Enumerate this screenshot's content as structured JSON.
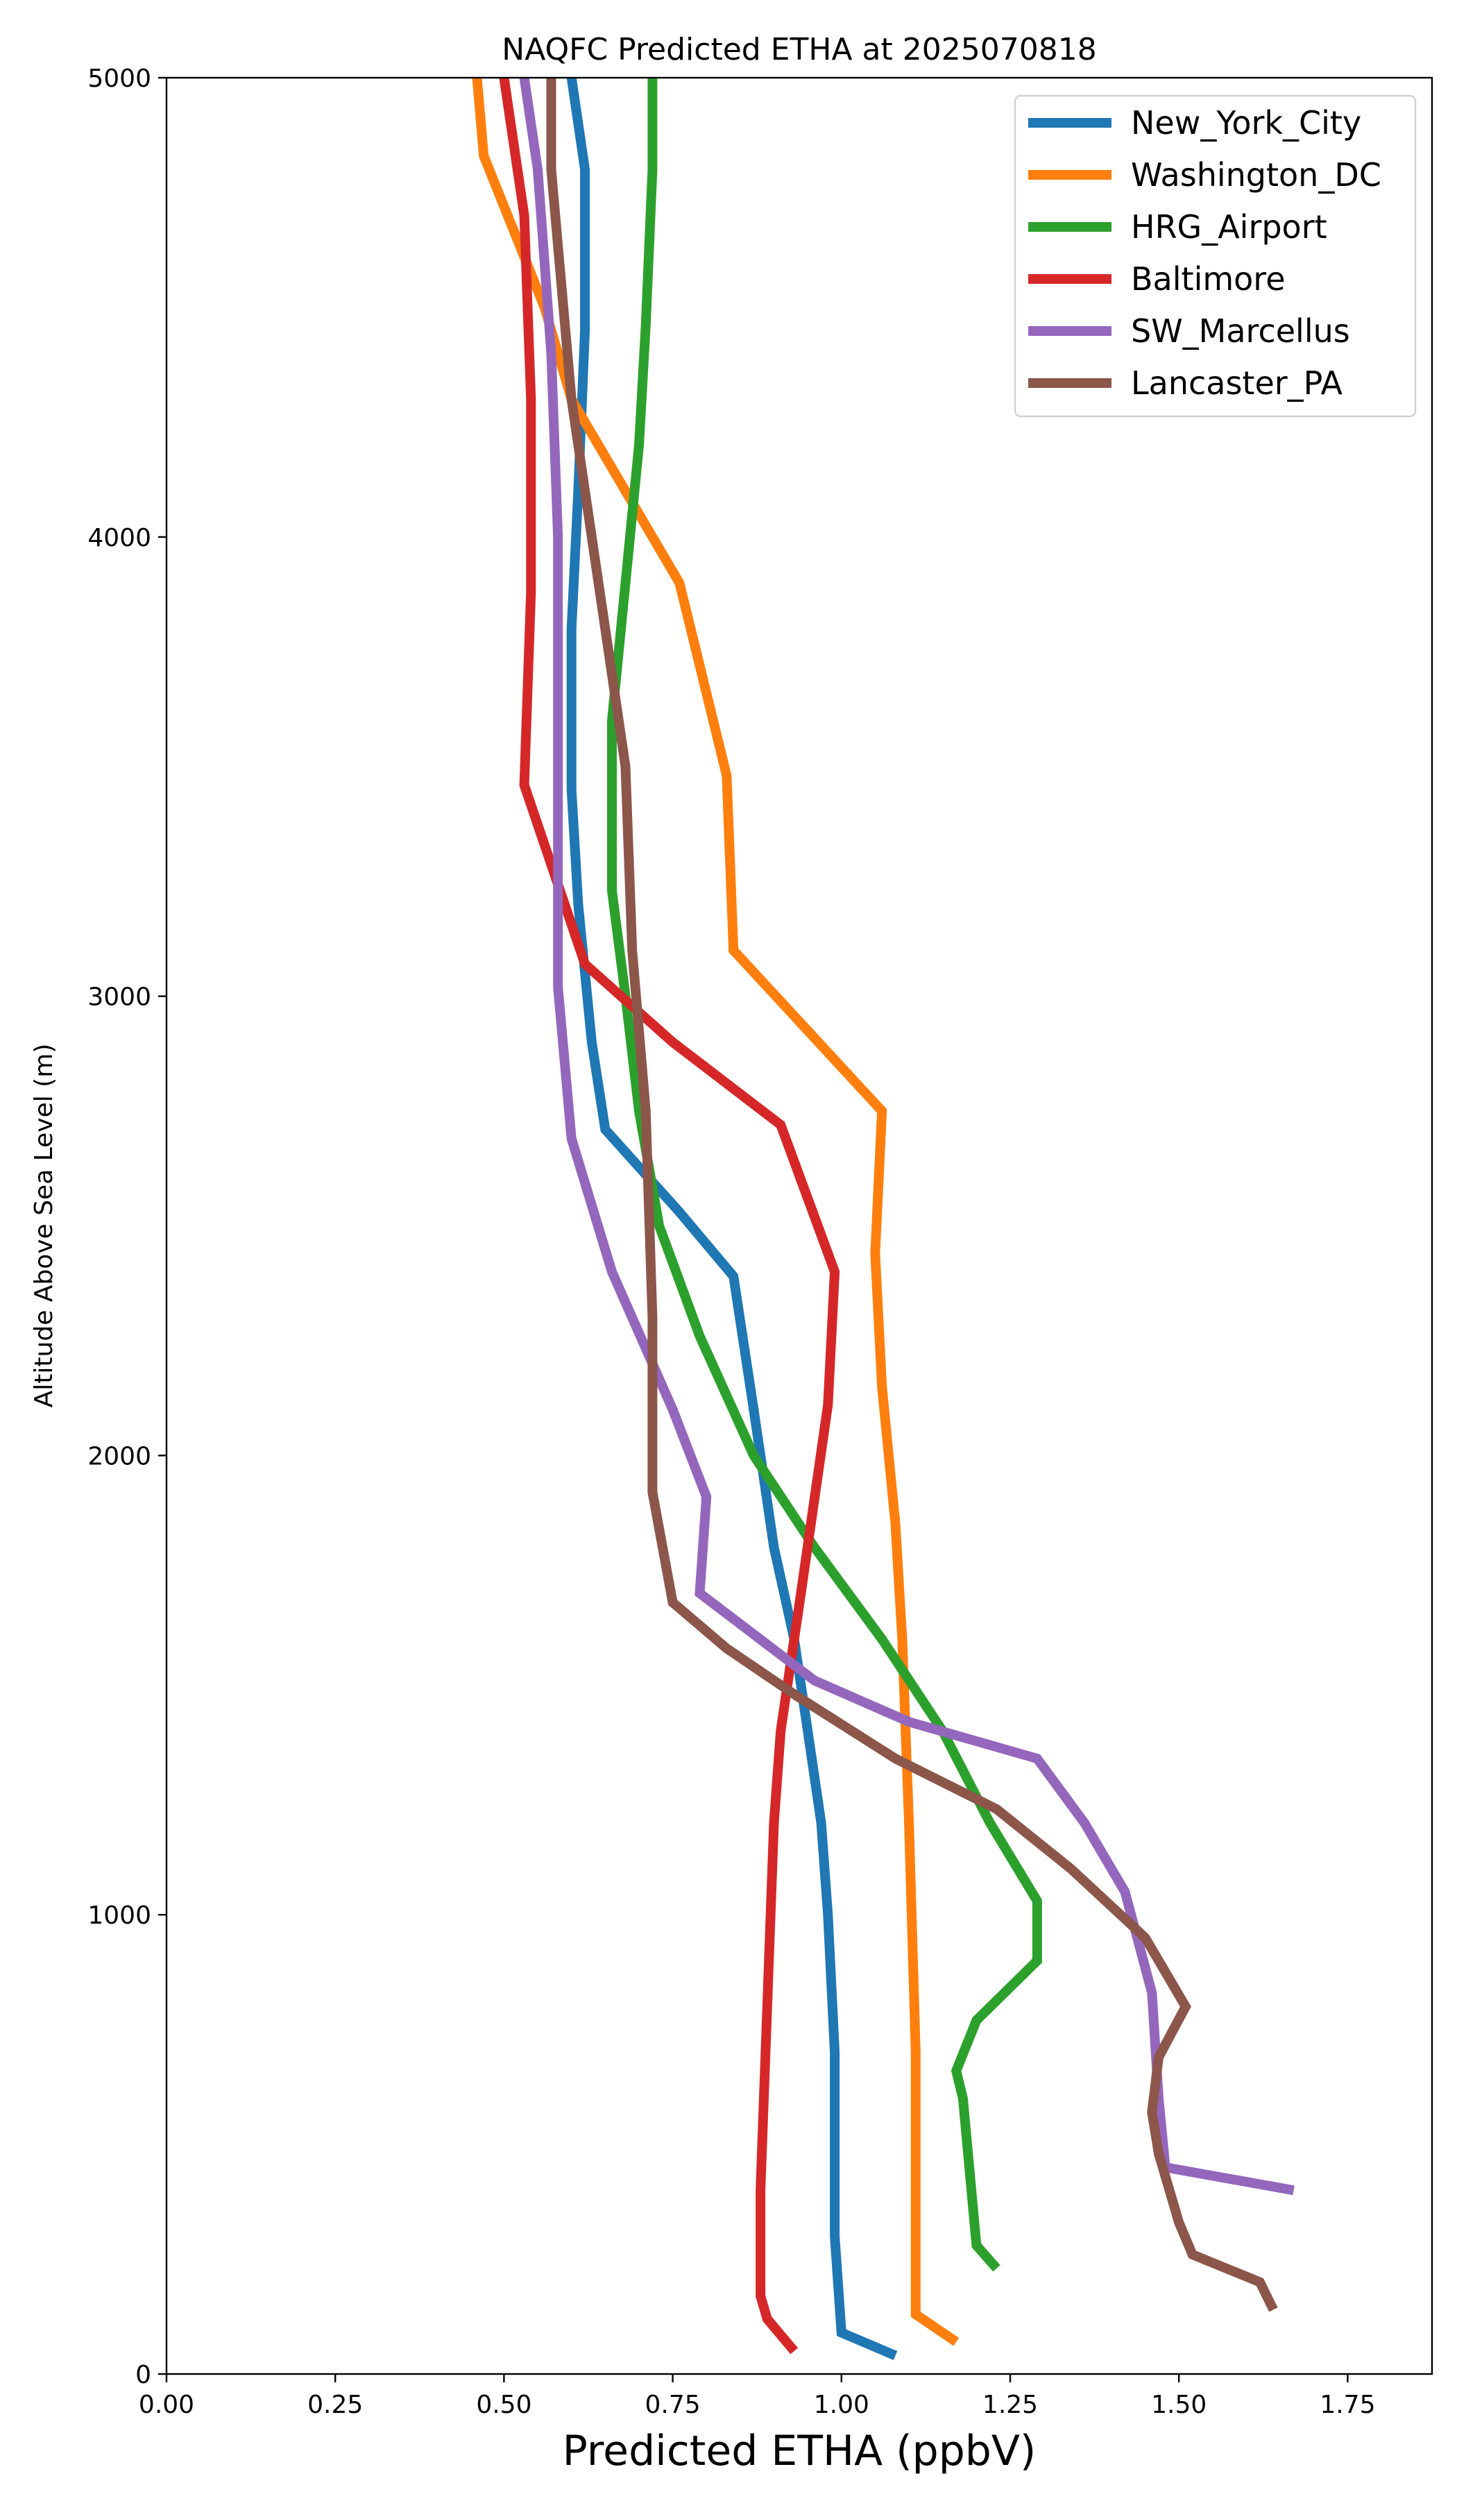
{
  "chart_data": {
    "type": "line",
    "title": "NAQFC Predicted ETHA at 2025070818",
    "xlabel": "Predicted ETHA (ppbV)",
    "ylabel": "Altitude Above Sea Level (m)",
    "xlim": [
      0,
      1.875
    ],
    "ylim": [
      0,
      5000
    ],
    "xticks": [
      0,
      0.25,
      0.5,
      0.75,
      1.0,
      1.25,
      1.5,
      1.75
    ],
    "xtick_labels": [
      "0.00",
      "0.25",
      "0.50",
      "0.75",
      "1.00",
      "1.25",
      "1.50",
      "1.75"
    ],
    "yticks": [
      0,
      1000,
      2000,
      3000,
      4000,
      5000
    ],
    "ytick_labels": [
      "0",
      "1000",
      "2000",
      "3000",
      "4000",
      "5000"
    ],
    "grid": false,
    "legend_position": "top-right",
    "series": [
      {
        "name": "New_York_City",
        "color": "#1f77b4",
        "points": [
          [
            1.08,
            40
          ],
          [
            1.0,
            90
          ],
          [
            0.99,
            300
          ],
          [
            0.99,
            700
          ],
          [
            0.98,
            1000
          ],
          [
            0.97,
            1200
          ],
          [
            0.95,
            1400
          ],
          [
            0.93,
            1600
          ],
          [
            0.9,
            1800
          ],
          [
            0.88,
            2000
          ],
          [
            0.87,
            2100
          ],
          [
            0.84,
            2390
          ],
          [
            0.76,
            2530
          ],
          [
            0.65,
            2710
          ],
          [
            0.63,
            2900
          ],
          [
            0.61,
            3200
          ],
          [
            0.6,
            3450
          ],
          [
            0.6,
            3800
          ],
          [
            0.61,
            4100
          ],
          [
            0.62,
            4450
          ],
          [
            0.62,
            4800
          ],
          [
            0.6,
            5000
          ]
        ]
      },
      {
        "name": "Washington_DC",
        "color": "#ff7f0e",
        "points": [
          [
            1.17,
            70
          ],
          [
            1.11,
            130
          ],
          [
            1.11,
            700
          ],
          [
            1.1,
            1200
          ],
          [
            1.09,
            1600
          ],
          [
            1.08,
            1850
          ],
          [
            1.06,
            2150
          ],
          [
            1.05,
            2440
          ],
          [
            1.06,
            2750
          ],
          [
            0.84,
            3100
          ],
          [
            0.83,
            3480
          ],
          [
            0.76,
            3900
          ],
          [
            0.68,
            4100
          ],
          [
            0.6,
            4300
          ],
          [
            0.56,
            4500
          ],
          [
            0.47,
            4830
          ],
          [
            0.46,
            5000
          ]
        ]
      },
      {
        "name": "HRG_Airport",
        "color": "#2ca02c",
        "points": [
          [
            1.23,
            230
          ],
          [
            1.2,
            280
          ],
          [
            1.18,
            600
          ],
          [
            1.17,
            660
          ],
          [
            1.2,
            770
          ],
          [
            1.29,
            900
          ],
          [
            1.29,
            1030
          ],
          [
            1.22,
            1200
          ],
          [
            1.15,
            1400
          ],
          [
            1.06,
            1600
          ],
          [
            0.96,
            1800
          ],
          [
            0.87,
            2000
          ],
          [
            0.79,
            2260
          ],
          [
            0.73,
            2500
          ],
          [
            0.7,
            2750
          ],
          [
            0.68,
            3000
          ],
          [
            0.66,
            3230
          ],
          [
            0.66,
            3600
          ],
          [
            0.68,
            3900
          ],
          [
            0.7,
            4200
          ],
          [
            0.71,
            4460
          ],
          [
            0.72,
            4800
          ],
          [
            0.72,
            5000
          ]
        ]
      },
      {
        "name": "Baltimore",
        "color": "#d62728",
        "points": [
          [
            0.93,
            50
          ],
          [
            0.89,
            120
          ],
          [
            0.88,
            170
          ],
          [
            0.88,
            400
          ],
          [
            0.89,
            800
          ],
          [
            0.9,
            1200
          ],
          [
            0.91,
            1400
          ],
          [
            0.94,
            1700
          ],
          [
            0.98,
            2110
          ],
          [
            0.99,
            2400
          ],
          [
            0.91,
            2720
          ],
          [
            0.75,
            2900
          ],
          [
            0.62,
            3070
          ],
          [
            0.53,
            3460
          ],
          [
            0.54,
            3880
          ],
          [
            0.54,
            4300
          ],
          [
            0.53,
            4700
          ],
          [
            0.5,
            5000
          ]
        ]
      },
      {
        "name": "SW_Marcellus",
        "color": "#9467bd",
        "points": [
          [
            1.67,
            400
          ],
          [
            1.48,
            450
          ],
          [
            1.47,
            600
          ],
          [
            1.46,
            830
          ],
          [
            1.42,
            1050
          ],
          [
            1.36,
            1200
          ],
          [
            1.29,
            1340
          ],
          [
            1.1,
            1420
          ],
          [
            0.96,
            1510
          ],
          [
            0.79,
            1700
          ],
          [
            0.8,
            1910
          ],
          [
            0.75,
            2100
          ],
          [
            0.66,
            2400
          ],
          [
            0.6,
            2690
          ],
          [
            0.58,
            3020
          ],
          [
            0.58,
            3500
          ],
          [
            0.58,
            4000
          ],
          [
            0.57,
            4400
          ],
          [
            0.55,
            4800
          ],
          [
            0.53,
            5000
          ]
        ]
      },
      {
        "name": "Lancaster_PA",
        "color": "#8c564b",
        "points": [
          [
            1.64,
            140
          ],
          [
            1.62,
            200
          ],
          [
            1.52,
            260
          ],
          [
            1.5,
            330
          ],
          [
            1.47,
            480
          ],
          [
            1.46,
            570
          ],
          [
            1.47,
            690
          ],
          [
            1.51,
            800
          ],
          [
            1.45,
            950
          ],
          [
            1.34,
            1100
          ],
          [
            1.23,
            1230
          ],
          [
            1.08,
            1340
          ],
          [
            0.93,
            1480
          ],
          [
            0.83,
            1580
          ],
          [
            0.75,
            1680
          ],
          [
            0.72,
            1920
          ],
          [
            0.72,
            2300
          ],
          [
            0.71,
            2750
          ],
          [
            0.69,
            3100
          ],
          [
            0.68,
            3500
          ],
          [
            0.64,
            3900
          ],
          [
            0.6,
            4300
          ],
          [
            0.57,
            4800
          ],
          [
            0.57,
            5000
          ]
        ]
      }
    ]
  }
}
